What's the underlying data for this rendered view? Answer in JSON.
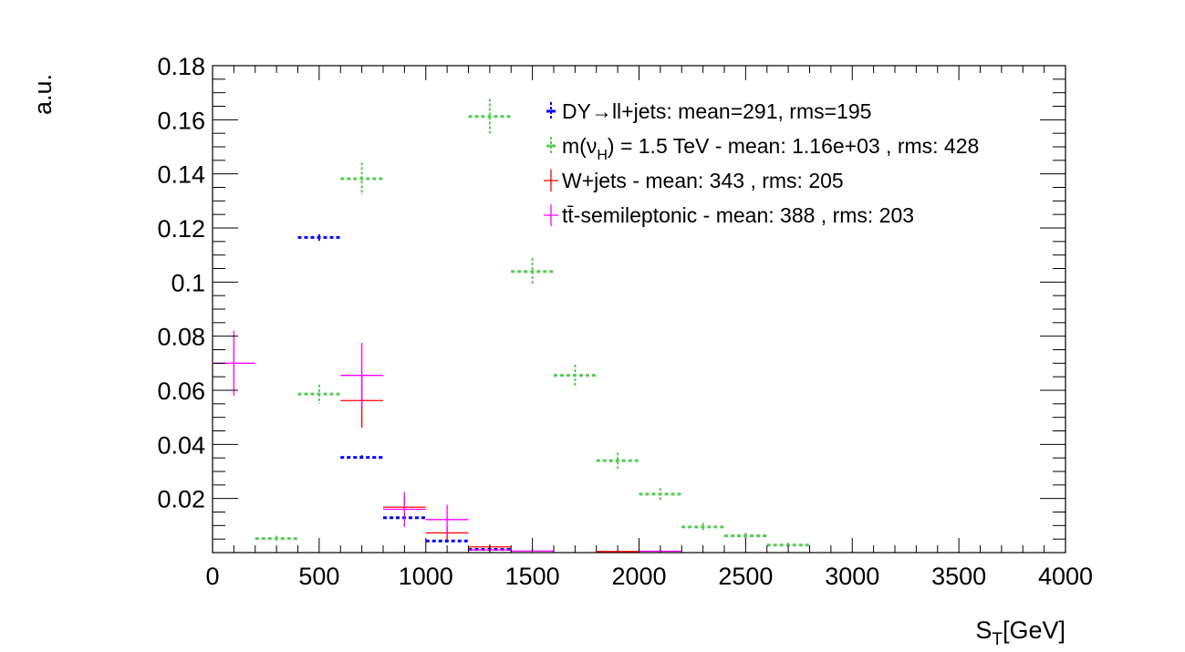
{
  "chart_data": {
    "type": "scatter",
    "style": "histogram points with horizontal bin-width bars and vertical error bars",
    "xlabel": "S_T[GeV]",
    "xlabel_main": "S",
    "xlabel_sub": "T",
    "xlabel_rest": "[GeV]",
    "ylabel": "a.u.",
    "xlim": [
      0,
      4000
    ],
    "ylim": [
      0,
      0.18
    ],
    "x_ticks": [
      0,
      500,
      1000,
      1500,
      2000,
      2500,
      3000,
      3500,
      4000
    ],
    "x_tick_labels": [
      "0",
      "500",
      "1000",
      "1500",
      "2000",
      "2500",
      "3000",
      "3500",
      "4000"
    ],
    "y_ticks": [
      0.02,
      0.04,
      0.06,
      0.08,
      0.1,
      0.12,
      0.14,
      0.16,
      0.18
    ],
    "y_tick_labels": [
      "0.02",
      "0.04",
      "0.06",
      "0.08",
      "0.1",
      "0.12",
      "0.14",
      "0.16",
      "0.18"
    ],
    "bin_width": 200,
    "grid": false,
    "legend_position": "top-right",
    "series": [
      {
        "name": "DY→ll+jets: mean=291, rms=195",
        "color": "#0000ff",
        "dashed": true,
        "points": [
          {
            "x": 500,
            "y": 0.1165,
            "err": 0.0012
          },
          {
            "x": 700,
            "y": 0.0352,
            "err": 0.0008
          },
          {
            "x": 900,
            "y": 0.0129,
            "err": 0.0005
          },
          {
            "x": 1100,
            "y": 0.0043,
            "err": 0.0003
          },
          {
            "x": 1300,
            "y": 0.0012,
            "err": 0.0002
          }
        ]
      },
      {
        "name": "m(ν_H) = 1.5 TeV - mean: 1.16e+03 , rms: 428",
        "color": "#55cc55",
        "dashed": true,
        "points": [
          {
            "x": 300,
            "y": 0.0052,
            "err": 0.001
          },
          {
            "x": 500,
            "y": 0.0586,
            "err": 0.0035
          },
          {
            "x": 700,
            "y": 0.1382,
            "err": 0.006
          },
          {
            "x": 1300,
            "y": 0.1612,
            "err": 0.0065
          },
          {
            "x": 1500,
            "y": 0.1039,
            "err": 0.005
          },
          {
            "x": 1700,
            "y": 0.0655,
            "err": 0.004
          },
          {
            "x": 1900,
            "y": 0.034,
            "err": 0.003
          },
          {
            "x": 2100,
            "y": 0.0216,
            "err": 0.0022
          },
          {
            "x": 2300,
            "y": 0.0095,
            "err": 0.0015
          },
          {
            "x": 2500,
            "y": 0.0062,
            "err": 0.0012
          },
          {
            "x": 2700,
            "y": 0.0028,
            "err": 0.0008
          }
        ]
      },
      {
        "name": "W+jets - mean: 343 , rms: 205",
        "color": "#ff0000",
        "dashed": false,
        "points": [
          {
            "x": 700,
            "y": 0.0562,
            "err": 0.01
          },
          {
            "x": 900,
            "y": 0.0168,
            "err": 0.004
          },
          {
            "x": 1100,
            "y": 0.0073,
            "err": 0.0025
          },
          {
            "x": 1300,
            "y": 0.0021,
            "err": 0.001
          },
          {
            "x": 1900,
            "y": 0.0004,
            "err": 0.0004
          }
        ]
      },
      {
        "name": "tt̄-semileptonic - mean: 388 , rms: 203",
        "color": "#ff00ff",
        "dashed": false,
        "points": [
          {
            "x": 100,
            "y": 0.07,
            "err": 0.012
          },
          {
            "x": 700,
            "y": 0.0655,
            "err": 0.012
          },
          {
            "x": 900,
            "y": 0.016,
            "err": 0.0065
          },
          {
            "x": 1100,
            "y": 0.0122,
            "err": 0.0055
          },
          {
            "x": 1300,
            "y": 0.001,
            "err": 0.001
          },
          {
            "x": 1500,
            "y": 0.0006,
            "err": 0.0006
          },
          {
            "x": 2100,
            "y": 0.0005,
            "err": 0.0005
          }
        ]
      }
    ],
    "legend": [
      {
        "main": "DY→ll+jets: mean=291, rms=195"
      },
      {
        "main": "m(ν",
        "sub": "H",
        "rest": ") = 1.5 TeV - mean: 1.16e+03 , rms: 428"
      },
      {
        "main": "W+jets - mean: 343 , rms: 205"
      },
      {
        "main": "tt̄-semileptonic - mean: 388 , rms: 203"
      }
    ]
  }
}
